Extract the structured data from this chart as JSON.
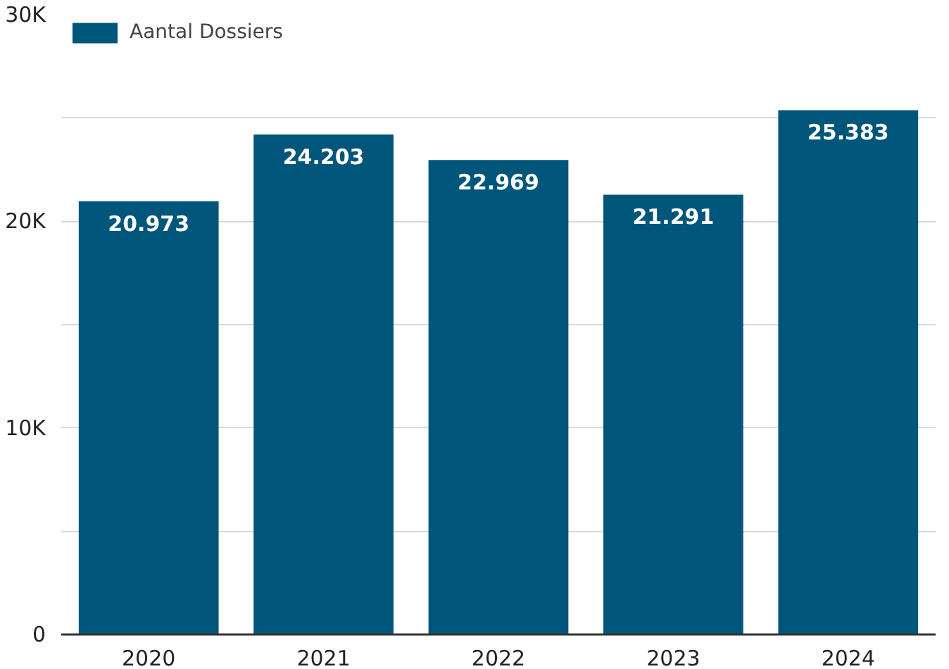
{
  "chart_data": {
    "type": "bar",
    "categories": [
      "2020",
      "2021",
      "2022",
      "2023",
      "2024"
    ],
    "series": [
      {
        "name": "Aantal Dossiers",
        "color": "#00567a",
        "values": [
          20973,
          24203,
          22969,
          21291,
          25383
        ]
      }
    ],
    "value_labels": [
      "20.973",
      "24.203",
      "22.969",
      "21.291",
      "25.383"
    ],
    "ylim": [
      0,
      30000
    ],
    "yticks": [
      {
        "value": 0,
        "label": "0"
      },
      {
        "value": 5000,
        "label": null
      },
      {
        "value": 10000,
        "label": "10K"
      },
      {
        "value": 15000,
        "label": null
      },
      {
        "value": 20000,
        "label": "20K"
      },
      {
        "value": 25000,
        "label": null
      },
      {
        "value": 30000,
        "label": "30K"
      }
    ],
    "grid": "y",
    "legend": "top left"
  }
}
